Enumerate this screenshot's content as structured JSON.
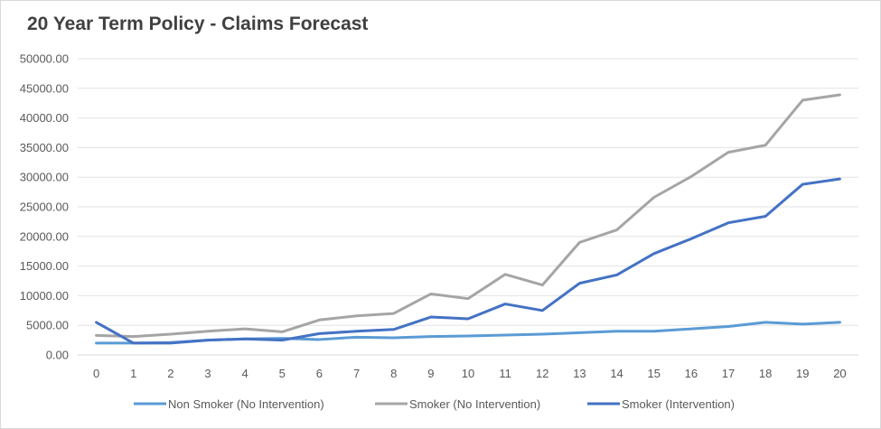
{
  "chart_data": {
    "type": "line",
    "title": "20 Year Term Policy - Claims Forecast",
    "xlabel": "",
    "ylabel": "",
    "x": [
      0,
      1,
      2,
      3,
      4,
      5,
      6,
      7,
      8,
      9,
      10,
      11,
      12,
      13,
      14,
      15,
      16,
      17,
      18,
      19,
      20
    ],
    "ylim": [
      0,
      50000
    ],
    "yticks": [
      "0.00",
      "5000.00",
      "10000.00",
      "15000.00",
      "20000.00",
      "25000.00",
      "30000.00",
      "35000.00",
      "40000.00",
      "45000.00",
      "50000.00"
    ],
    "grid": true,
    "legend_position": "bottom",
    "series": [
      {
        "name": "Non Smoker (No Intervention)",
        "color": "#5b9bd5",
        "values": [
          2000,
          2000,
          2100,
          2500,
          2700,
          2800,
          2600,
          3000,
          2900,
          3100,
          3200,
          3350,
          3500,
          3750,
          4000,
          4000,
          4400,
          4800,
          5500,
          5200,
          5500
        ]
      },
      {
        "name": "Smoker (No Intervention)",
        "color": "#a5a5a5",
        "values": [
          3300,
          3100,
          3500,
          4000,
          4400,
          3900,
          5900,
          6600,
          7000,
          10300,
          9500,
          13600,
          11800,
          19000,
          21100,
          26600,
          30100,
          34200,
          35400,
          43000,
          43900
        ]
      },
      {
        "name": "Smoker (Intervention)",
        "color": "#4472c4",
        "values": [
          5500,
          2000,
          2000,
          2500,
          2700,
          2500,
          3600,
          4000,
          4300,
          6400,
          6100,
          8600,
          7500,
          12100,
          13500,
          17100,
          19600,
          22300,
          23400,
          28800,
          29700
        ]
      }
    ]
  }
}
